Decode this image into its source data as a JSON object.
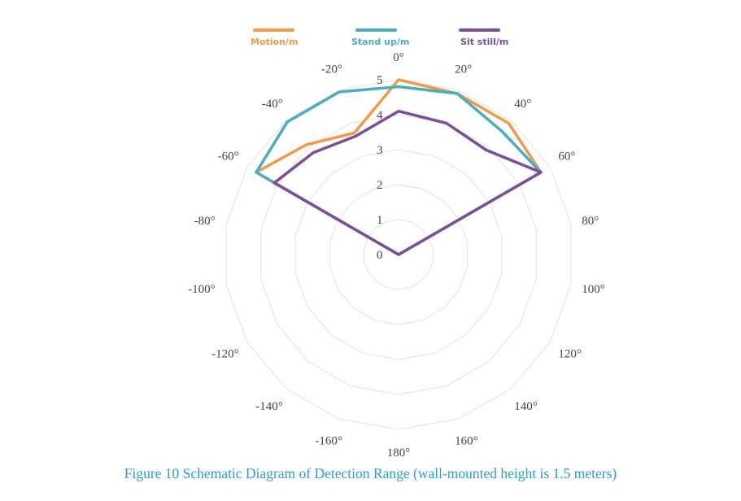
{
  "caption": "Figure 10 Schematic Diagram of Detection Range (wall-mounted height is 1.5 meters)",
  "chart_data": {
    "type": "radar",
    "theta_labels": [
      "0°",
      "20°",
      "40°",
      "60°",
      "80°",
      "100°",
      "120°",
      "140°",
      "160°",
      "180°",
      "-160°",
      "-140°",
      "-120°",
      "-100°",
      "-80°",
      "-60°",
      "-40°",
      "-20°"
    ],
    "theta_values": [
      0,
      20,
      40,
      60,
      80,
      100,
      120,
      140,
      160,
      180,
      -160,
      -140,
      -120,
      -100,
      -80,
      -60,
      -40,
      -20
    ],
    "r_ticks": [
      0,
      1,
      2,
      3,
      4,
      5
    ],
    "r_max": 5,
    "grid": true,
    "legend_position": "top",
    "series": [
      {
        "name": "Motion/m",
        "color": "#f39a4a",
        "angles": [
          -60,
          -40,
          -20,
          0,
          20,
          40,
          60,
          80
        ],
        "values": [
          4.7,
          4.1,
          3.7,
          5.0,
          4.9,
          4.9,
          4.7,
          0
        ]
      },
      {
        "name": "Stand up/m",
        "color": "#4aaebe",
        "angles": [
          -60,
          -40,
          -20,
          0,
          20,
          40,
          60,
          80
        ],
        "values": [
          4.7,
          4.95,
          4.95,
          4.8,
          4.9,
          4.6,
          4.7,
          0
        ]
      },
      {
        "name": "Sit still/m",
        "color": "#7a4f96",
        "angles": [
          -60,
          -40,
          -20,
          0,
          20,
          40,
          60,
          80
        ],
        "values": [
          4.1,
          3.8,
          3.6,
          4.1,
          4.0,
          3.9,
          4.7,
          0
        ]
      }
    ]
  }
}
